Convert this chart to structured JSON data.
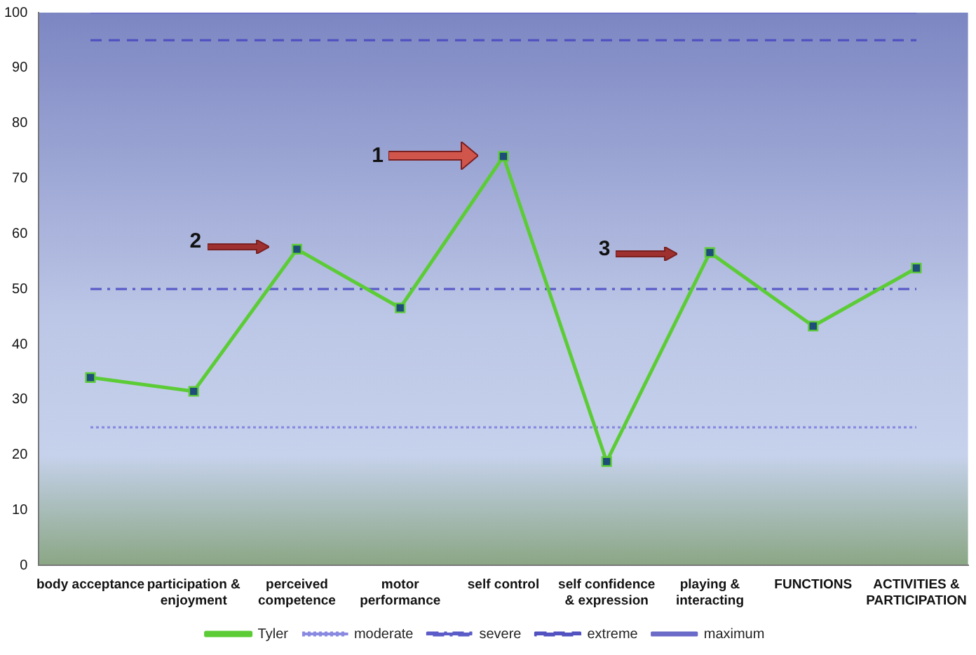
{
  "chart_data": {
    "type": "line",
    "categories": [
      "body acceptance",
      "participation & enjoyment",
      "perceived competence",
      "motor performance",
      "self control",
      "self confidence & expression",
      "playing & interacting",
      "FUNCTIONS",
      "ACTIVITIES & PARTICIPATION"
    ],
    "series": [
      {
        "name": "Tyler",
        "color": "#5ccc36",
        "marker": "square",
        "line_style": "solid",
        "values": [
          34,
          31.5,
          57.2,
          46.6,
          74,
          18.8,
          56.6,
          43.3,
          53.8
        ]
      },
      {
        "name": "moderate",
        "color": "#8a8ae0",
        "marker": "none",
        "line_style": "dotted",
        "values": [
          25,
          25,
          25,
          25,
          25,
          25,
          25,
          25,
          25
        ]
      },
      {
        "name": "severe",
        "color": "#5c5cc8",
        "marker": "none",
        "line_style": "dashdot",
        "values": [
          50,
          50,
          50,
          50,
          50,
          50,
          50,
          50,
          50
        ]
      },
      {
        "name": "extreme",
        "color": "#5252c0",
        "marker": "none",
        "line_style": "dashed",
        "values": [
          95,
          95,
          95,
          95,
          95,
          95,
          95,
          95,
          95
        ]
      },
      {
        "name": "maximum",
        "color": "#6a6ac8",
        "marker": "none",
        "line_style": "solid",
        "values": [
          100,
          100,
          100,
          100,
          100,
          100,
          100,
          100,
          100
        ]
      }
    ],
    "ylim": [
      0,
      100
    ],
    "yticks": [
      0,
      10,
      20,
      30,
      40,
      50,
      60,
      70,
      80,
      90,
      100
    ],
    "grid": false,
    "legend": "bottom",
    "annotations": [
      "1",
      "2",
      "3"
    ]
  }
}
